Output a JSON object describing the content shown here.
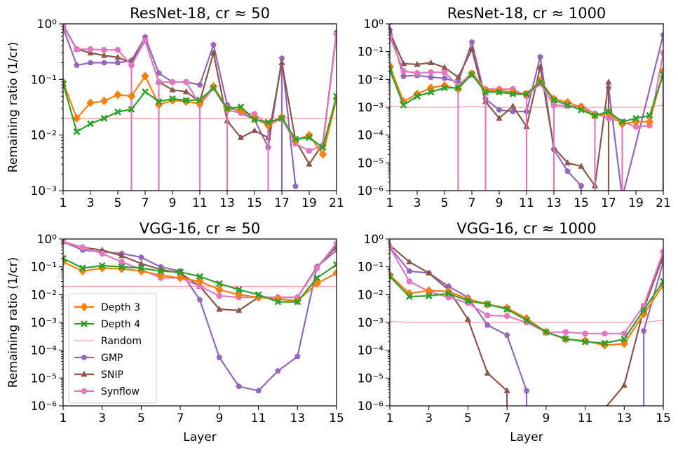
{
  "figure": {
    "ylabel": "Remaining ratio (1/cr)",
    "xlabel": "Layer"
  },
  "legend": {
    "entries": [
      {
        "name": "Depth 3",
        "color": "#ff7f0e",
        "marker": "diamond"
      },
      {
        "name": "Depth 4",
        "color": "#2ca02c",
        "marker": "x"
      },
      {
        "name": "Random",
        "color": "#f0a0a0",
        "marker": "none"
      },
      {
        "name": "GMP",
        "color": "#9467bd",
        "marker": "pentagon"
      },
      {
        "name": "SNIP",
        "color": "#8c564b",
        "marker": "triangle"
      },
      {
        "name": "Synflow",
        "color": "#e377c2",
        "marker": "circle"
      }
    ]
  },
  "chart_data": [
    {
      "type": "line",
      "title": "ResNet-18, cr ≈ 50",
      "xlabel": "",
      "ylabel": "Remaining ratio (1/cr)",
      "yscale": "log",
      "xlim": [
        1,
        21
      ],
      "ylim": [
        0.001,
        1
      ],
      "xticks": [
        1,
        3,
        5,
        7,
        9,
        11,
        13,
        15,
        17,
        19,
        21
      ],
      "yticks": [
        "10^-3",
        "10^-2",
        "10^-1",
        "10^0"
      ],
      "x": [
        1,
        2,
        3,
        4,
        5,
        6,
        7,
        8,
        9,
        10,
        11,
        12,
        13,
        14,
        15,
        16,
        17,
        18,
        19,
        20,
        21
      ],
      "series": [
        {
          "name": "Random",
          "values": [
            0.02,
            0.02,
            0.02,
            0.02,
            0.02,
            0.02,
            0.02,
            0.02,
            0.02,
            0.02,
            0.02,
            0.02,
            0.02,
            0.02,
            0.02,
            0.02,
            0.02,
            0.02,
            0.02,
            0.02,
            0.02
          ]
        },
        {
          "name": "GMP",
          "values": [
            0.85,
            0.18,
            0.2,
            0.2,
            0.2,
            0.22,
            0.58,
            0.13,
            0.09,
            0.09,
            0.08,
            0.42,
            0.035,
            0.025,
            0.019,
            0.006,
            0.24,
            0.0012,
            null,
            null,
            0.7
          ]
        },
        {
          "name": "SNIP",
          "values": [
            0.95,
            0.35,
            0.3,
            0.27,
            0.25,
            0.2,
            0.5,
            0.09,
            0.065,
            0.06,
            0.04,
            0.3,
            0.018,
            0.009,
            0.012,
            0.009,
            0.2,
            0.008,
            0.003,
            0.007,
            0.72
          ]
        },
        {
          "name": "Synflow",
          "values": [
            0.9,
            0.35,
            0.35,
            0.34,
            0.34,
            0.18,
            0.5,
            0.09,
            0.09,
            0.09,
            0.035,
            0.07,
            0.028,
            0.025,
            0.024,
            0.015,
            0.02,
            0.007,
            0.0052,
            0.0065,
            0.65
          ]
        },
        {
          "name": "Depth 3",
          "values": [
            0.09,
            0.02,
            0.038,
            0.041,
            0.053,
            0.05,
            0.115,
            0.035,
            0.042,
            0.04,
            0.037,
            0.075,
            0.03,
            0.028,
            0.02,
            0.015,
            0.021,
            0.008,
            0.01,
            0.0045,
            0.045
          ]
        },
        {
          "name": "Depth 4",
          "values": [
            0.085,
            0.0115,
            0.016,
            0.02,
            0.026,
            0.029,
            0.06,
            0.04,
            0.045,
            0.042,
            0.043,
            0.07,
            0.03,
            0.032,
            0.019,
            0.017,
            0.02,
            0.0085,
            0.009,
            0.006,
            0.05
          ]
        }
      ],
      "drops": [
        {
          "series": "Synflow",
          "x": [
            6,
            8,
            11,
            13,
            16
          ]
        },
        {
          "series": "GMP",
          "x": [
            17
          ]
        }
      ]
    },
    {
      "type": "line",
      "title": "ResNet-18, cr ≈ 1000",
      "xlabel": "",
      "ylabel": "",
      "yscale": "log",
      "xlim": [
        1,
        21
      ],
      "ylim": [
        1e-06,
        1
      ],
      "xticks": [
        1,
        3,
        5,
        7,
        9,
        11,
        13,
        15,
        17,
        19,
        21
      ],
      "yticks": [
        "10^-6",
        "10^-5",
        "10^-4",
        "10^-3",
        "10^-2",
        "10^-1",
        "10^0"
      ],
      "x": [
        1,
        2,
        3,
        4,
        5,
        6,
        7,
        8,
        9,
        10,
        11,
        12,
        13,
        14,
        15,
        16,
        17,
        18,
        19,
        20,
        21
      ],
      "series": [
        {
          "name": "Random",
          "values": [
            0.0011,
            0.001,
            0.001,
            0.001,
            0.001,
            0.001,
            0.0011,
            0.001,
            0.001,
            0.001,
            0.001,
            0.001,
            0.001,
            0.001,
            0.001,
            0.001,
            0.001,
            0.001,
            0.001,
            0.001,
            0.0012
          ]
        },
        {
          "name": "GMP",
          "values": [
            0.6,
            0.013,
            0.014,
            0.012,
            0.011,
            0.008,
            0.22,
            0.002,
            0.0008,
            0.0007,
            0.0007,
            0.065,
            3e-05,
            5e-06,
            1.5e-06,
            null,
            0.005,
            null,
            null,
            null,
            0.4
          ]
        },
        {
          "name": "SNIP",
          "values": [
            0.5,
            0.037,
            0.035,
            0.04,
            0.027,
            0.012,
            0.12,
            0.0016,
            0.0004,
            0.0011,
            0.0002,
            0.028,
            3.5e-05,
            1e-05,
            7.5e-06,
            1.5e-06,
            0.008,
            null,
            null,
            null,
            0.02
          ]
        },
        {
          "name": "Synflow",
          "values": [
            0.35,
            0.02,
            0.017,
            0.018,
            0.018,
            0.006,
            0.017,
            0.0045,
            0.0045,
            0.0045,
            0.0025,
            0.007,
            0.0012,
            0.0011,
            0.0011,
            0.0006,
            0.0004,
            0.0003,
            0.0002,
            0.00022,
            0.09
          ]
        },
        {
          "name": "Depth 3",
          "values": [
            0.03,
            0.0016,
            0.003,
            0.005,
            0.006,
            0.0045,
            0.016,
            0.004,
            0.004,
            0.0035,
            0.003,
            0.009,
            0.002,
            0.0015,
            0.001,
            0.0005,
            0.0006,
            0.00025,
            0.0003,
            0.0003,
            0.02
          ]
        },
        {
          "name": "Depth 4",
          "values": [
            0.022,
            0.0012,
            0.0025,
            0.0035,
            0.005,
            0.005,
            0.015,
            0.0035,
            0.0035,
            0.003,
            0.003,
            0.008,
            0.0018,
            0.0012,
            0.0008,
            0.0005,
            0.0007,
            0.0003,
            0.0004,
            0.0005,
            0.015
          ]
        }
      ],
      "drops": [
        {
          "series": "Synflow",
          "x": [
            6,
            8,
            11,
            13,
            16,
            18
          ]
        },
        {
          "series": "GMP",
          "x": [
            15,
            18
          ]
        },
        {
          "series": "SNIP",
          "x": [
            16,
            17,
            21
          ]
        }
      ]
    },
    {
      "type": "line",
      "title": "VGG-16, cr ≈ 50",
      "xlabel": "Layer",
      "ylabel": "Remaining ratio (1/cr)",
      "yscale": "log",
      "xlim": [
        1,
        15
      ],
      "ylim": [
        1e-06,
        1
      ],
      "xticks": [
        1,
        3,
        5,
        7,
        9,
        11,
        13,
        15
      ],
      "yticks": [
        "10^-6",
        "10^-5",
        "10^-4",
        "10^-3",
        "10^-2",
        "10^-1",
        "10^0"
      ],
      "x": [
        1,
        2,
        3,
        4,
        5,
        6,
        7,
        8,
        9,
        10,
        11,
        12,
        13,
        14,
        15
      ],
      "series": [
        {
          "name": "Random",
          "values": [
            0.02,
            0.02,
            0.02,
            0.02,
            0.02,
            0.02,
            0.02,
            0.02,
            0.02,
            0.02,
            0.02,
            0.02,
            0.02,
            0.02,
            0.02
          ]
        },
        {
          "name": "GMP",
          "values": [
            0.8,
            0.4,
            0.35,
            0.3,
            0.22,
            0.1,
            0.07,
            0.0065,
            5.5e-05,
            5e-06,
            3.5e-06,
            1.8e-05,
            6e-05,
            0.1,
            0.4
          ]
        },
        {
          "name": "SNIP",
          "values": [
            0.8,
            0.5,
            0.4,
            0.25,
            0.13,
            0.08,
            0.06,
            0.02,
            0.003,
            0.0027,
            0.008,
            0.008,
            0.008,
            0.1,
            0.55
          ]
        },
        {
          "name": "Synflow",
          "values": [
            0.8,
            0.5,
            0.3,
            0.15,
            0.08,
            0.04,
            0.04,
            0.02,
            0.009,
            0.008,
            0.008,
            0.008,
            0.008,
            0.09,
            0.7
          ]
        },
        {
          "name": "Depth 3",
          "values": [
            0.15,
            0.07,
            0.09,
            0.085,
            0.07,
            0.05,
            0.04,
            0.03,
            0.015,
            0.01,
            0.008,
            0.007,
            0.006,
            0.025,
            0.06
          ]
        },
        {
          "name": "Depth 4",
          "values": [
            0.2,
            0.09,
            0.11,
            0.1,
            0.09,
            0.07,
            0.065,
            0.045,
            0.025,
            0.015,
            0.01,
            0.0055,
            0.0055,
            0.04,
            0.12
          ]
        }
      ],
      "drops": []
    },
    {
      "type": "line",
      "title": "VGG-16, cr ≈ 1000",
      "xlabel": "Layer",
      "ylabel": "",
      "yscale": "log",
      "xlim": [
        1,
        15
      ],
      "ylim": [
        1e-06,
        1
      ],
      "xticks": [
        1,
        3,
        5,
        7,
        9,
        11,
        13,
        15
      ],
      "yticks": [
        "10^-6",
        "10^-5",
        "10^-4",
        "10^-3",
        "10^-2",
        "10^-1",
        "10^0"
      ],
      "x": [
        1,
        2,
        3,
        4,
        5,
        6,
        7,
        8,
        9,
        10,
        11,
        12,
        13,
        14,
        15
      ],
      "series": [
        {
          "name": "Random",
          "values": [
            0.0011,
            0.001,
            0.001,
            0.001,
            0.001,
            0.001,
            0.001,
            0.001,
            0.001,
            0.001,
            0.001,
            0.001,
            0.001,
            0.001,
            0.0012
          ]
        },
        {
          "name": "GMP",
          "values": [
            0.5,
            0.07,
            0.06,
            0.02,
            0.008,
            0.0008,
            0.00035,
            3.5e-06,
            null,
            null,
            null,
            null,
            null,
            0.0005,
            0.15
          ]
        },
        {
          "name": "SNIP",
          "values": [
            0.6,
            0.15,
            0.06,
            0.015,
            0.0013,
            1.5e-05,
            3.5e-06,
            null,
            null,
            null,
            null,
            8e-07,
            5.5e-06,
            0.003,
            0.25
          ]
        },
        {
          "name": "Synflow",
          "values": [
            0.5,
            0.03,
            0.013,
            0.008,
            0.005,
            0.0018,
            0.0017,
            0.001,
            0.00045,
            0.00045,
            0.0004,
            0.0004,
            0.0004,
            0.004,
            0.35
          ]
        },
        {
          "name": "Depth 3",
          "values": [
            0.05,
            0.011,
            0.014,
            0.013,
            0.007,
            0.0045,
            0.0033,
            0.0014,
            0.00045,
            0.00025,
            0.00022,
            0.00015,
            0.00017,
            0.002,
            0.022
          ]
        },
        {
          "name": "Depth 4",
          "values": [
            0.045,
            0.0085,
            0.009,
            0.011,
            0.006,
            0.0045,
            0.003,
            0.0012,
            0.00045,
            0.00026,
            0.0002,
            0.00018,
            0.00025,
            0.0028,
            0.03
          ]
        }
      ],
      "drops": [
        {
          "series": "GMP",
          "x": [
            8,
            14
          ]
        },
        {
          "series": "SNIP",
          "x": [
            7
          ]
        }
      ]
    }
  ]
}
